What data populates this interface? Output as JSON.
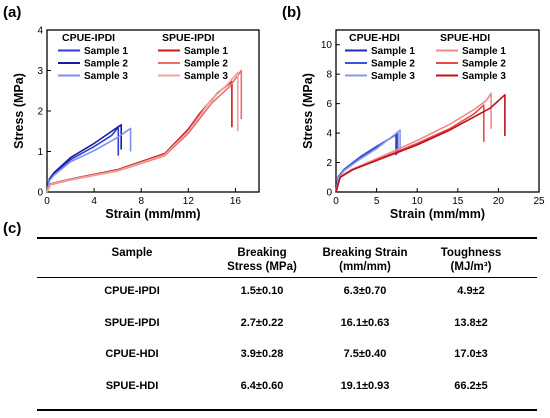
{
  "panels": {
    "a": "(a)",
    "b": "(b)",
    "c": "(c)"
  },
  "chart_data": [
    {
      "type": "line",
      "x_axis": {
        "label": "Strain (mm/mm)",
        "range": [
          0,
          18
        ],
        "ticks": [
          0,
          4,
          8,
          12,
          16
        ]
      },
      "y_axis": {
        "label": "Stress (MPa)",
        "range": [
          0,
          4
        ],
        "ticks": [
          0,
          1,
          2,
          3,
          4
        ]
      },
      "legend_groups": [
        {
          "title": "CPUE-IPDI",
          "series": [
            {
              "name": "Sample 1",
              "color": "#2b3fd1",
              "points": [
                [
                  0,
                  0
                ],
                [
                  0.2,
                  0.3
                ],
                [
                  0.6,
                  0.45
                ],
                [
                  2,
                  0.8
                ],
                [
                  4,
                  1.12
                ],
                [
                  5.5,
                  1.4
                ],
                [
                  6.05,
                  1.6
                ],
                [
                  6.05,
                  0.9
                ]
              ]
            },
            {
              "name": "Sample 2",
              "color": "#1a1aa8",
              "points": [
                [
                  0,
                  0
                ],
                [
                  0.2,
                  0.32
                ],
                [
                  0.6,
                  0.48
                ],
                [
                  2,
                  0.85
                ],
                [
                  4,
                  1.2
                ],
                [
                  5.6,
                  1.52
                ],
                [
                  6.3,
                  1.66
                ],
                [
                  6.3,
                  1.05
                ]
              ]
            },
            {
              "name": "Sample 3",
              "color": "#7f8ff0",
              "points": [
                [
                  0,
                  0
                ],
                [
                  0.2,
                  0.28
                ],
                [
                  0.6,
                  0.42
                ],
                [
                  2,
                  0.75
                ],
                [
                  4,
                  1.02
                ],
                [
                  6,
                  1.35
                ],
                [
                  7.1,
                  1.57
                ],
                [
                  7.1,
                  1.0
                ]
              ]
            }
          ]
        },
        {
          "title": "SPUE-IPDI",
          "series": [
            {
              "name": "Sample 1",
              "color": "#cc1a1a",
              "points": [
                [
                  0,
                  0
                ],
                [
                  0.3,
                  0.2
                ],
                [
                  2,
                  0.32
                ],
                [
                  6,
                  0.55
                ],
                [
                  10,
                  0.95
                ],
                [
                  12,
                  1.55
                ],
                [
                  13,
                  1.95
                ],
                [
                  14.5,
                  2.45
                ],
                [
                  15.7,
                  2.72
                ],
                [
                  15.7,
                  1.6
                ]
              ]
            },
            {
              "name": "Sample 2",
              "color": "#e86f6f",
              "points": [
                [
                  0,
                  0
                ],
                [
                  0.3,
                  0.18
                ],
                [
                  2,
                  0.3
                ],
                [
                  6,
                  0.52
                ],
                [
                  10,
                  0.9
                ],
                [
                  12,
                  1.45
                ],
                [
                  14,
                  2.2
                ],
                [
                  15.5,
                  2.6
                ],
                [
                  16.5,
                  3.0
                ],
                [
                  16.5,
                  1.8
                ]
              ]
            },
            {
              "name": "Sample 3",
              "color": "#f2a0a0",
              "points": [
                [
                  0,
                  0
                ],
                [
                  0.3,
                  0.19
                ],
                [
                  2,
                  0.31
                ],
                [
                  6,
                  0.53
                ],
                [
                  10,
                  0.92
                ],
                [
                  12,
                  1.5
                ],
                [
                  14,
                  2.3
                ],
                [
                  15.3,
                  2.65
                ],
                [
                  16.2,
                  2.95
                ],
                [
                  16.2,
                  1.5
                ]
              ]
            }
          ]
        }
      ]
    },
    {
      "type": "line",
      "x_axis": {
        "label": "Strain (mm/mm)",
        "range": [
          0,
          25
        ],
        "ticks": [
          0,
          5,
          10,
          15,
          20,
          25
        ]
      },
      "y_axis": {
        "label": "Stress (MPa)",
        "range": [
          0,
          11
        ],
        "ticks": [
          0,
          2,
          4,
          6,
          8,
          10
        ]
      },
      "legend_groups": [
        {
          "title": "CPUE-HDI",
          "series": [
            {
              "name": "Sample 1",
              "color": "#1f2fb5",
              "points": [
                [
                  0,
                  0
                ],
                [
                  0.3,
                  1.0
                ],
                [
                  1,
                  1.5
                ],
                [
                  3,
                  2.3
                ],
                [
                  5,
                  3.0
                ],
                [
                  6.8,
                  3.7
                ],
                [
                  7.4,
                  3.9
                ],
                [
                  7.4,
                  2.5
                ]
              ]
            },
            {
              "name": "Sample 2",
              "color": "#3a55e0",
              "points": [
                [
                  0,
                  0
                ],
                [
                  0.3,
                  1.05
                ],
                [
                  1,
                  1.55
                ],
                [
                  3,
                  2.4
                ],
                [
                  5,
                  3.1
                ],
                [
                  7,
                  3.75
                ],
                [
                  7.6,
                  4.0
                ],
                [
                  7.6,
                  2.6
                ]
              ]
            },
            {
              "name": "Sample 3",
              "color": "#8a98ee",
              "points": [
                [
                  0,
                  0
                ],
                [
                  0.3,
                  0.95
                ],
                [
                  1,
                  1.45
                ],
                [
                  3,
                  2.25
                ],
                [
                  5,
                  2.95
                ],
                [
                  7,
                  3.8
                ],
                [
                  7.9,
                  4.2
                ],
                [
                  7.9,
                  2.7
                ]
              ]
            }
          ]
        },
        {
          "title": "SPUE-HDI",
          "series": [
            {
              "name": "Sample 1",
              "color": "#f28a8a",
              "points": [
                [
                  0,
                  0
                ],
                [
                  0.5,
                  1.05
                ],
                [
                  2,
                  1.55
                ],
                [
                  6,
                  2.5
                ],
                [
                  10,
                  3.5
                ],
                [
                  14,
                  4.6
                ],
                [
                  17,
                  5.6
                ],
                [
                  18.5,
                  6.2
                ],
                [
                  19.1,
                  6.7
                ],
                [
                  19.1,
                  4.3
                ]
              ]
            },
            {
              "name": "Sample 2",
              "color": "#e84a4a",
              "points": [
                [
                  0,
                  0
                ],
                [
                  0.5,
                  1.0
                ],
                [
                  2,
                  1.5
                ],
                [
                  6,
                  2.4
                ],
                [
                  10,
                  3.3
                ],
                [
                  14,
                  4.3
                ],
                [
                  17,
                  5.3
                ],
                [
                  18.2,
                  5.9
                ],
                [
                  18.2,
                  3.4
                ]
              ]
            },
            {
              "name": "Sample 3",
              "color": "#c0101a",
              "points": [
                [
                  0,
                  0
                ],
                [
                  0.5,
                  1.0
                ],
                [
                  2,
                  1.5
                ],
                [
                  6,
                  2.35
                ],
                [
                  10,
                  3.2
                ],
                [
                  14,
                  4.2
                ],
                [
                  17,
                  5.1
                ],
                [
                  19,
                  5.7
                ],
                [
                  20.8,
                  6.6
                ],
                [
                  20.8,
                  3.8
                ]
              ]
            }
          ]
        }
      ]
    }
  ],
  "table": {
    "headers": {
      "sample": "Sample",
      "breaking_stress_1": "Breaking",
      "breaking_stress_2": "Stress  (MPa)",
      "breaking_strain_1": "Breaking Strain",
      "breaking_strain_2": "(mm/mm)",
      "toughness_1": "Toughness",
      "toughness_2": "(MJ/m³)"
    },
    "rows": [
      {
        "sample": "CPUE-IPDI",
        "stress": "1.5±0.10",
        "strain": "6.3±0.70",
        "toughness": "4.9±2"
      },
      {
        "sample": "SPUE-IPDI",
        "stress": "2.7±0.22",
        "strain": "16.1±0.63",
        "toughness": "13.8±2"
      },
      {
        "sample": "CPUE-HDI",
        "stress": "3.9±0.28",
        "strain": "7.5±0.40",
        "toughness": "17.0±3"
      },
      {
        "sample": "SPUE-HDI",
        "stress": "6.4±0.60",
        "strain": "19.1±0.93",
        "toughness": "66.2±5"
      }
    ]
  }
}
